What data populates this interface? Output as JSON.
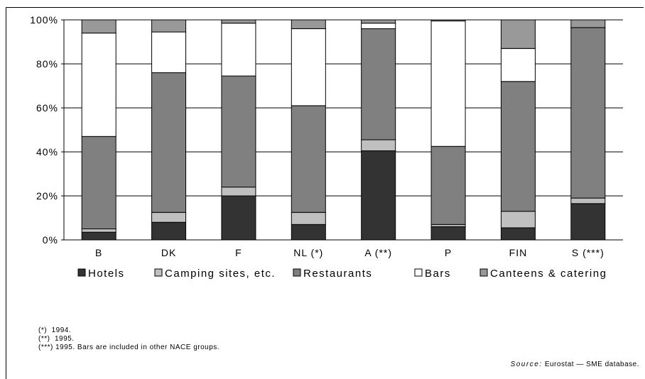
{
  "chart_data": {
    "type": "bar",
    "stacked": true,
    "percent": true,
    "categories": [
      "B",
      "DK",
      "F",
      "NL (*)",
      "A (**)",
      "P",
      "FIN",
      "S (***)"
    ],
    "series": [
      {
        "name": "Hotels",
        "color": "#333333",
        "values": [
          3.5,
          8,
          20,
          7,
          40.5,
          6,
          5.5,
          16.5
        ]
      },
      {
        "name": "Camping sites, etc.",
        "color": "#c0c0c0",
        "values": [
          1.5,
          4.5,
          4,
          5.5,
          5,
          1,
          7.5,
          2.5
        ]
      },
      {
        "name": "Restaurants",
        "color": "#808080",
        "values": [
          42,
          63.5,
          50.5,
          48.5,
          50.5,
          35.5,
          59,
          77.5
        ]
      },
      {
        "name": "Bars",
        "color": "#ffffff",
        "values": [
          47,
          18.5,
          24,
          35,
          2.5,
          57,
          15,
          0
        ]
      },
      {
        "name": "Canteens & catering",
        "color": "#999999",
        "values": [
          6,
          5.5,
          1.5,
          4,
          1.5,
          0.5,
          13,
          3.5
        ]
      }
    ],
    "ylim": [
      0,
      100
    ],
    "yticks": [
      "0%",
      "20%",
      "40%",
      "60%",
      "80%",
      "100%"
    ],
    "grid": true,
    "legend": "bottom"
  },
  "notes": [
    "(*)  1994.",
    "(**)  1995.",
    "(***) 1995. Bars are included in other NACE groups."
  ],
  "source": {
    "label": "Source:",
    "text": " Eurostat — SME database."
  }
}
